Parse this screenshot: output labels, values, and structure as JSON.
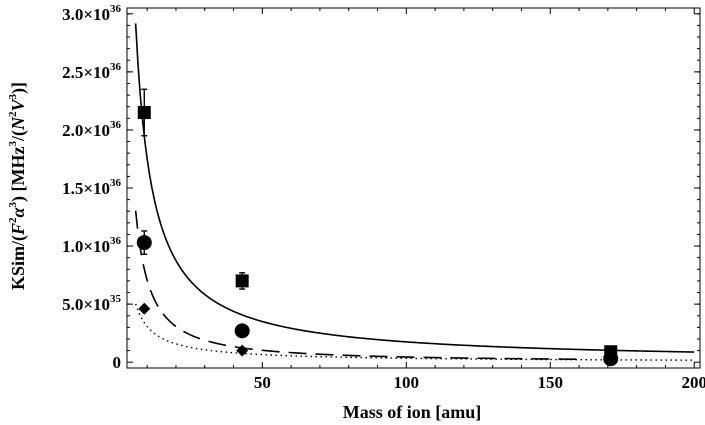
{
  "chart_data": {
    "type": "scatter",
    "title": "",
    "xlabel": "Mass of ion [amu]",
    "ylabel": "KSim/(F²α³) [MHz³/(N²V³)]",
    "ylabel_parts": {
      "pre": "KSim/(",
      "F": "F",
      "F_exp": "2",
      "alpha": "α",
      "alpha_exp": "3",
      "mid": ") [MHz",
      "mhz_exp": "3",
      "mid2": "/(",
      "N": "N",
      "N_exp": "2",
      "V": "V",
      "V_exp": "3",
      "post": ")]"
    },
    "xlim": [
      3,
      202
    ],
    "ylim": [
      -5e+34,
      3.05e+36
    ],
    "x_ticks": [
      {
        "value": 50,
        "label": "50"
      },
      {
        "value": 100,
        "label": "100"
      },
      {
        "value": 150,
        "label": "150"
      },
      {
        "value": 200,
        "label": "200"
      }
    ],
    "y_ticks": [
      {
        "value": 0,
        "mant": "0",
        "exp": ""
      },
      {
        "value": 5e+35,
        "mant": "5.0×10",
        "exp": "35"
      },
      {
        "value": 1e+36,
        "mant": "1.0×10",
        "exp": "36"
      },
      {
        "value": 1.5e+36,
        "mant": "1.5×10",
        "exp": "36"
      },
      {
        "value": 2e+36,
        "mant": "2.0×10",
        "exp": "36"
      },
      {
        "value": 2.5e+36,
        "mant": "2.5×10",
        "exp": "36"
      },
      {
        "value": 3e+36,
        "mant": "3.0×10",
        "exp": "36"
      }
    ],
    "curves": [
      {
        "name": "fit-square",
        "style": "solid",
        "x_from": 6,
        "x_to": 200,
        "k": 1.75e+37,
        "p": 1.0
      },
      {
        "name": "fit-circle",
        "style": "dashed",
        "x_from": 6,
        "x_to": 160,
        "k": 1.12e+37,
        "p": 1.2
      },
      {
        "name": "fit-diamond",
        "style": "dotted",
        "x_from": 6,
        "x_to": 200,
        "k": 2.8e+36,
        "p": 0.96
      }
    ],
    "series": [
      {
        "name": "squares",
        "marker": "square",
        "points": [
          {
            "x": 9,
            "y": 2.15e+36,
            "err": 2e+35
          },
          {
            "x": 43,
            "y": 7e+35,
            "err": 7e+34
          },
          {
            "x": 171,
            "y": 9e+34,
            "err": 2e+34
          }
        ]
      },
      {
        "name": "circles",
        "marker": "circle",
        "points": [
          {
            "x": 9,
            "y": 1.03e+36,
            "err": 1e+35
          },
          {
            "x": 43,
            "y": 2.7e+35,
            "err": 2e+34
          },
          {
            "x": 171,
            "y": 3e+34,
            "err": 5e+33
          }
        ]
      },
      {
        "name": "diamonds",
        "marker": "diamond",
        "points": [
          {
            "x": 9,
            "y": 4.6e+35,
            "err": 0
          },
          {
            "x": 43,
            "y": 1e+35,
            "err": 0
          },
          {
            "x": 171,
            "y": 2e+34,
            "err": 0
          }
        ]
      }
    ]
  }
}
